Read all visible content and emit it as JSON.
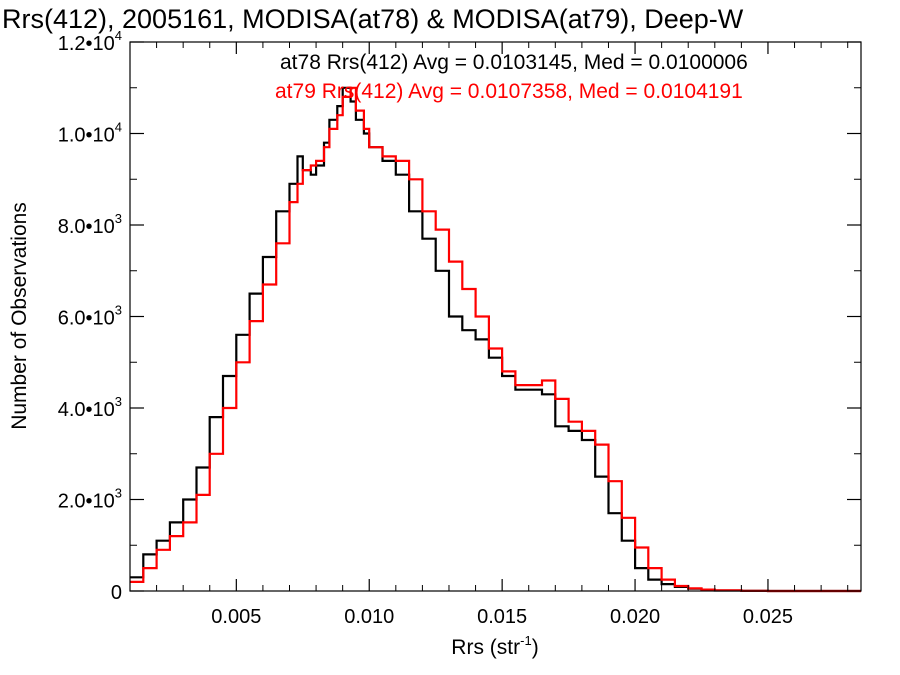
{
  "chart_data": {
    "type": "line",
    "title": "Rrs(412), 2005161, MODISA(at78) & MODISA(at79), Deep-W",
    "xlabel": "Rrs (str",
    "xlabel_sup": "-1",
    "xlabel_end": ")",
    "ylabel": "Number of Observations",
    "xlim": [
      0.001,
      0.0285
    ],
    "ylim": [
      0,
      12000
    ],
    "x_ticks": [
      {
        "value": 0.005,
        "label": "0.005"
      },
      {
        "value": 0.01,
        "label": "0.010"
      },
      {
        "value": 0.015,
        "label": "0.015"
      },
      {
        "value": 0.02,
        "label": "0.020"
      },
      {
        "value": 0.025,
        "label": "0.025"
      }
    ],
    "y_ticks": [
      {
        "value": 0,
        "mant": "0",
        "exp": ""
      },
      {
        "value": 2000,
        "mant": "2.0•10",
        "exp": "3"
      },
      {
        "value": 4000,
        "mant": "4.0•10",
        "exp": "3"
      },
      {
        "value": 6000,
        "mant": "6.0•10",
        "exp": "3"
      },
      {
        "value": 8000,
        "mant": "8.0•10",
        "exp": "3"
      },
      {
        "value": 10000,
        "mant": "1.0•10",
        "exp": "4"
      },
      {
        "value": 12000,
        "mant": "1.2•10",
        "exp": "4"
      }
    ],
    "legend_placement": "top-right",
    "grid": false,
    "series": [
      {
        "name": "at78",
        "legend": "at78 Rrs(412) Avg = 0.0103145, Med = 0.0100006",
        "color": "#000000",
        "x": [
          0.001,
          0.0015,
          0.002,
          0.0025,
          0.003,
          0.0035,
          0.004,
          0.0045,
          0.005,
          0.0055,
          0.006,
          0.0065,
          0.007,
          0.0073,
          0.0075,
          0.0078,
          0.008,
          0.0083,
          0.0085,
          0.0088,
          0.009,
          0.0093,
          0.0095,
          0.0098,
          0.01,
          0.0105,
          0.011,
          0.0115,
          0.012,
          0.0125,
          0.013,
          0.0135,
          0.014,
          0.0145,
          0.015,
          0.0155,
          0.016,
          0.0165,
          0.017,
          0.0175,
          0.018,
          0.0185,
          0.019,
          0.0195,
          0.02,
          0.0205,
          0.021,
          0.0215,
          0.022,
          0.0225,
          0.023,
          0.024,
          0.025,
          0.0285
        ],
        "values": [
          300,
          800,
          1100,
          1500,
          2000,
          2700,
          3800,
          4700,
          5600,
          6500,
          7300,
          8300,
          8900,
          9500,
          9200,
          9100,
          9300,
          9800,
          10300,
          10600,
          11000,
          10700,
          10300,
          10000,
          9700,
          9400,
          9100,
          8300,
          7700,
          7000,
          6000,
          5700,
          5500,
          5100,
          4700,
          4400,
          4400,
          4300,
          3600,
          3500,
          3300,
          2500,
          1700,
          1100,
          500,
          250,
          150,
          90,
          50,
          25,
          10,
          5,
          0,
          0
        ]
      },
      {
        "name": "at79",
        "legend": "at79 Rrs(412) Avg = 0.0107358, Med = 0.0104191",
        "color": "#ff0000",
        "x": [
          0.001,
          0.0015,
          0.002,
          0.0025,
          0.003,
          0.0035,
          0.004,
          0.0045,
          0.005,
          0.0055,
          0.006,
          0.0065,
          0.007,
          0.0073,
          0.0075,
          0.0078,
          0.008,
          0.0083,
          0.0085,
          0.0088,
          0.009,
          0.0093,
          0.0095,
          0.0098,
          0.01,
          0.0105,
          0.011,
          0.0115,
          0.012,
          0.0125,
          0.013,
          0.0135,
          0.014,
          0.0145,
          0.015,
          0.0155,
          0.016,
          0.0165,
          0.017,
          0.0175,
          0.018,
          0.0185,
          0.019,
          0.0195,
          0.02,
          0.0205,
          0.021,
          0.0215,
          0.022,
          0.0225,
          0.023,
          0.024,
          0.025,
          0.0285
        ],
        "values": [
          200,
          500,
          900,
          1200,
          1500,
          2100,
          3000,
          4000,
          5000,
          5900,
          6700,
          7600,
          8500,
          8900,
          9200,
          9300,
          9400,
          9700,
          10100,
          10400,
          10800,
          11000,
          10500,
          10100,
          9700,
          9500,
          9400,
          9000,
          8300,
          7900,
          7200,
          6600,
          6000,
          5300,
          4800,
          4500,
          4500,
          4600,
          4200,
          3700,
          3500,
          3200,
          2400,
          1600,
          950,
          500,
          250,
          110,
          60,
          30,
          15,
          5,
          0,
          0
        ]
      }
    ]
  }
}
